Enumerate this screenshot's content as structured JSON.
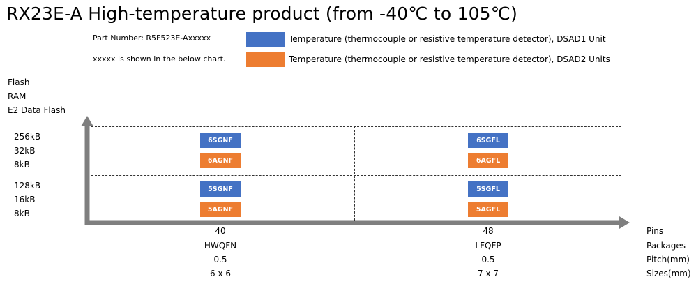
{
  "title": "RX23E-A High-temperature product (from -40℃ to 105℃)",
  "part_number": "Part Number: R5F523E-Axxxxx",
  "chart_note": "xxxxx is shown in the below chart.",
  "legend": [
    {
      "color": "#4472c4",
      "label": "Temperature (thermocouple or resistive temperature  detector),  DSAD1 Unit"
    },
    {
      "color": "#ed7d31",
      "label": "Temperature (thermocouple or resistive temperature  detector),  DSAD2 Units"
    }
  ],
  "y_axis_title": [
    "Flash",
    "RAM",
    "E2 Data Flash"
  ],
  "rows": [
    {
      "labels": [
        "256kB",
        "32kB",
        "8kB"
      ]
    },
    {
      "labels": [
        "128kB",
        "16kB",
        "8kB"
      ]
    }
  ],
  "chips": {
    "r0c0_blue": "6SGNF",
    "r0c0_orange": "6AGNF",
    "r0c1_blue": "6SGFL",
    "r0c1_orange": "6AGFL",
    "r1c0_blue": "5SGNF",
    "r1c0_orange": "5AGNF",
    "r1c1_blue": "5SGFL",
    "r1c1_orange": "5AGFL"
  },
  "columns": [
    {
      "pins": "40",
      "package": "HWQFN",
      "pitch": "0.5",
      "size": "6 x 6"
    },
    {
      "pins": "48",
      "package": "LFQFP",
      "pitch": "0.5",
      "size": "7 x 7"
    }
  ],
  "x_axis_labels": {
    "pins": "Pins",
    "packages": "Packages",
    "pitch": "Pitch(mm)",
    "sizes": "Sizes(mm)"
  },
  "colors": {
    "blue": "#4472c4",
    "orange": "#ed7d31",
    "axis": "#7f7f7f"
  }
}
